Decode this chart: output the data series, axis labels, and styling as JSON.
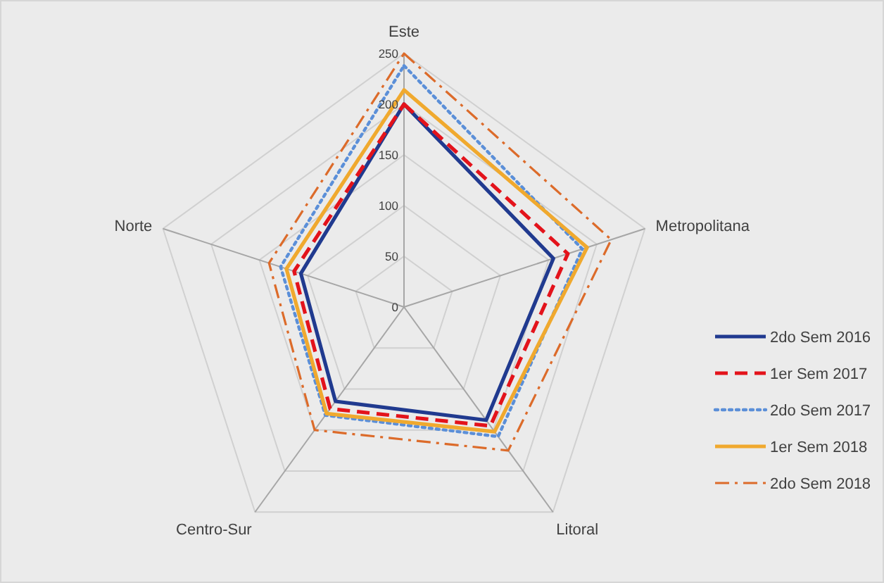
{
  "chart_data": {
    "type": "radar",
    "categories": [
      "Este",
      "Metropolitana",
      "Litoral",
      "Centro-Sur",
      "Norte"
    ],
    "ylim": [
      0,
      250
    ],
    "yticks": [
      0,
      50,
      100,
      150,
      200,
      250
    ],
    "grid": true,
    "legend": "right",
    "marker": "none",
    "series": [
      {
        "name": "2do Sem 2016",
        "color": "#203a8f",
        "line_style": "solid",
        "values": [
          200,
          155,
          138,
          115,
          107
        ]
      },
      {
        "name": "1er Sem 2017",
        "color": "#e3131b",
        "line_style": "dashed",
        "values": [
          200,
          170,
          145,
          124,
          114
        ]
      },
      {
        "name": "2do Sem 2017",
        "color": "#5b8fd8",
        "line_style": "dotted",
        "values": [
          238,
          185,
          158,
          132,
          128
        ]
      },
      {
        "name": "1er Sem 2018",
        "color": "#f0a92e",
        "line_style": "solid",
        "values": [
          214,
          190,
          152,
          130,
          122
        ]
      },
      {
        "name": "2do Sem 2018",
        "color": "#dc6b2a",
        "line_style": "dashdot",
        "values": [
          250,
          215,
          175,
          150,
          140
        ]
      }
    ]
  }
}
